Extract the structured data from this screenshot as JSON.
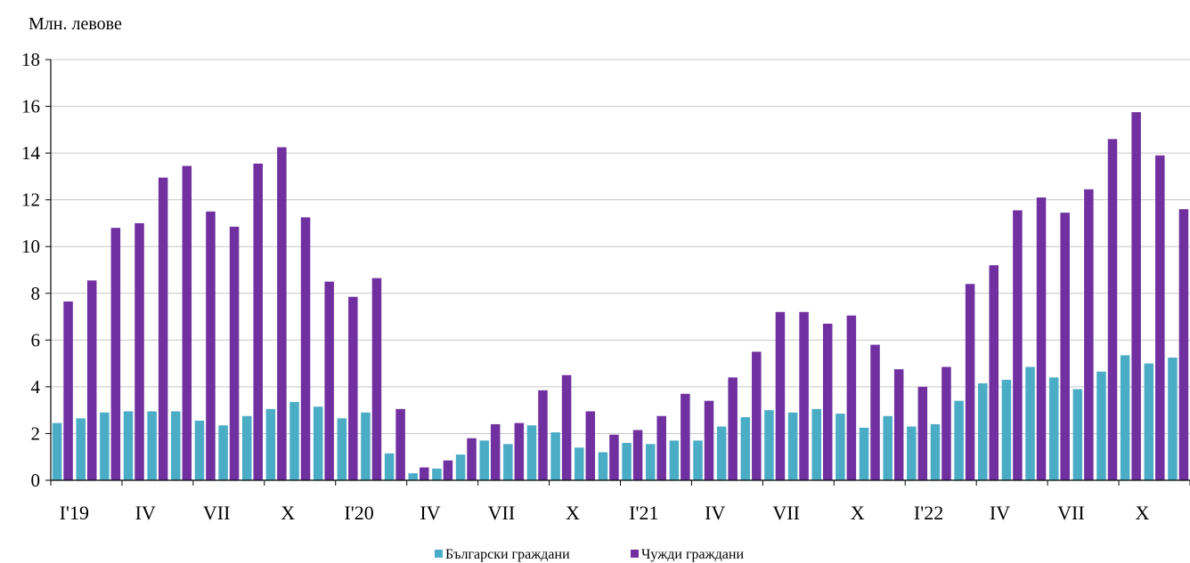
{
  "chart_data": {
    "type": "bar",
    "ylabel": "Млн. левове",
    "ylim": [
      0,
      18
    ],
    "yticks": [
      0,
      2,
      4,
      6,
      8,
      10,
      12,
      14,
      16,
      18
    ],
    "grid": true,
    "legend_position": "bottom",
    "x_tick_labels": [
      "I'19",
      "IV",
      "VII",
      "X",
      "I'20",
      "IV",
      "VII",
      "X",
      "I'21",
      "IV",
      "VII",
      "X",
      "I'22",
      "IV",
      "VII",
      "X"
    ],
    "categories": [
      "I'19",
      "II'19",
      "III'19",
      "IV'19",
      "V'19",
      "VI'19",
      "VII'19",
      "VIII'19",
      "IX'19",
      "X'19",
      "XI'19",
      "XII'19",
      "I'20",
      "II'20",
      "III'20",
      "IV'20",
      "V'20",
      "VI'20",
      "VII'20",
      "VIII'20",
      "IX'20",
      "X'20",
      "XI'20",
      "XII'20",
      "I'21",
      "II'21",
      "III'21",
      "IV'21",
      "V'21",
      "VI'21",
      "VII'21",
      "VIII'21",
      "IX'21",
      "X'21",
      "XI'21",
      "XII'21",
      "I'22",
      "II'22",
      "III'22",
      "IV'22",
      "V'22",
      "VI'22",
      "VII'22",
      "VIII'22",
      "IX'22",
      "X'22",
      "XI'22",
      "XII'22"
    ],
    "series": [
      {
        "name": "Български граждани",
        "color": "#4bacc6",
        "values": [
          2.45,
          2.65,
          2.9,
          2.95,
          2.95,
          2.95,
          2.55,
          2.35,
          2.75,
          3.05,
          3.35,
          3.15,
          2.65,
          2.9,
          1.15,
          0.3,
          0.5,
          1.1,
          1.7,
          1.55,
          2.35,
          2.05,
          1.4,
          1.2,
          1.6,
          1.55,
          1.7,
          1.7,
          2.3,
          2.7,
          3.0,
          2.9,
          3.05,
          2.85,
          2.25,
          2.75,
          2.3,
          2.4,
          3.4,
          4.15,
          4.3,
          4.85,
          4.4,
          3.9,
          4.65,
          5.35,
          5.0,
          5.25
        ]
      },
      {
        "name": "Чужди граждани",
        "color": "#7030a0",
        "values": [
          7.65,
          8.55,
          10.8,
          11.0,
          12.95,
          13.45,
          11.5,
          10.85,
          13.55,
          14.25,
          11.25,
          8.5,
          7.85,
          8.65,
          3.05,
          0.55,
          0.85,
          1.8,
          2.4,
          2.45,
          3.85,
          4.5,
          2.95,
          1.95,
          2.15,
          2.75,
          3.7,
          3.4,
          4.4,
          5.5,
          7.2,
          7.2,
          6.7,
          7.05,
          5.8,
          4.75,
          4.0,
          4.85,
          8.4,
          9.2,
          11.55,
          12.1,
          11.45,
          12.45,
          14.6,
          15.75,
          13.9,
          11.6
        ]
      }
    ]
  }
}
